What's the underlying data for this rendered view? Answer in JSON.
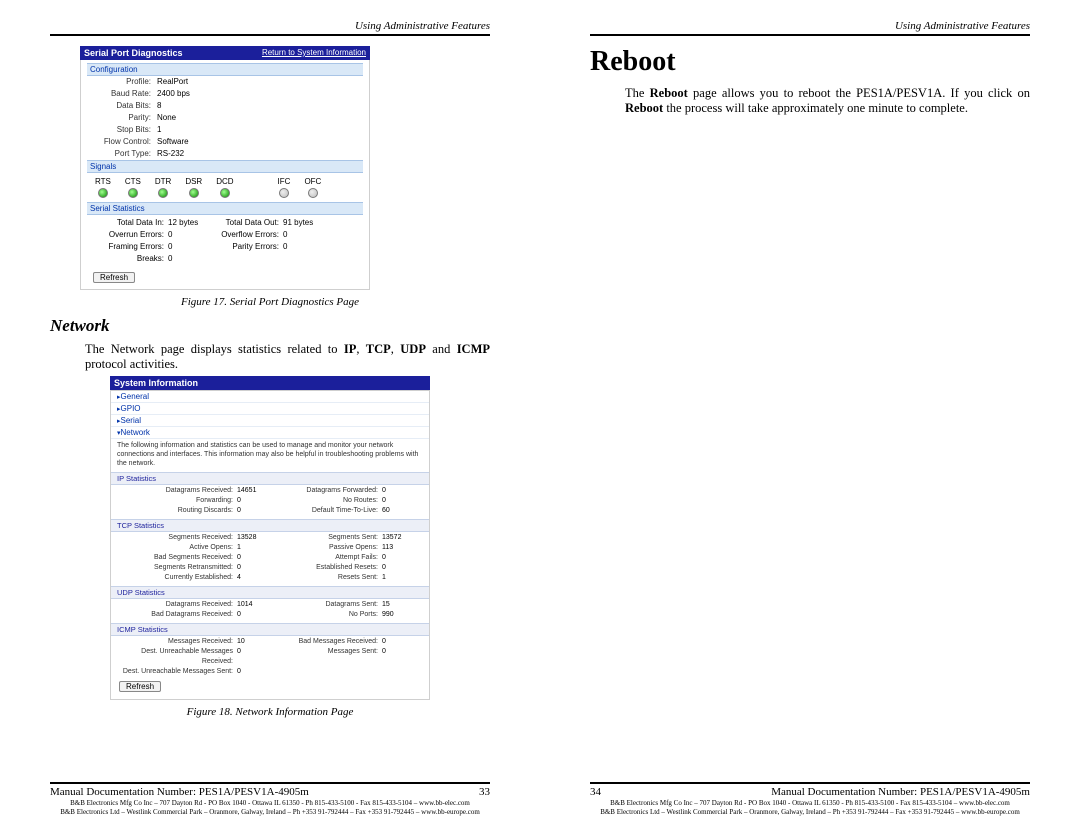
{
  "pageLeft": {
    "header": "Using Administrative Features",
    "fig17": {
      "title": "Serial Port Diagnostics",
      "returnLink": "Return to System Information",
      "sections": {
        "config": {
          "head": "Configuration",
          "rows": [
            {
              "k": "Profile:",
              "v": "RealPort"
            },
            {
              "k": "Baud Rate:",
              "v": "2400 bps"
            },
            {
              "k": "Data Bits:",
              "v": "8"
            },
            {
              "k": "Parity:",
              "v": "None"
            },
            {
              "k": "Stop Bits:",
              "v": "1"
            },
            {
              "k": "Flow Control:",
              "v": "Software"
            },
            {
              "k": "Port Type:",
              "v": "RS-232"
            }
          ]
        },
        "signals": {
          "head": "Signals",
          "items": [
            {
              "name": "RTS",
              "on": true
            },
            {
              "name": "CTS",
              "on": true
            },
            {
              "name": "DTR",
              "on": true
            },
            {
              "name": "DSR",
              "on": true
            },
            {
              "name": "DCD",
              "on": true
            },
            {
              "name": "IFC",
              "on": false
            },
            {
              "name": "OFC",
              "on": false
            }
          ]
        },
        "serialStats": {
          "head": "Serial Statistics",
          "grid": [
            [
              "Total Data In:",
              "12 bytes",
              "Total Data Out:",
              "91 bytes"
            ],
            [
              "Overrun Errors:",
              "0",
              "Overflow Errors:",
              "0"
            ],
            [
              "Framing Errors:",
              "0",
              "Parity Errors:",
              "0"
            ],
            [
              "Breaks:",
              "0",
              "",
              ""
            ]
          ],
          "button": "Refresh"
        }
      },
      "caption": "Figure 17.   Serial Port Diagnostics Page"
    },
    "networkHeading": "Network",
    "networkPara": {
      "pre": "The Network page displays statistics related to ",
      "b1": "IP",
      "c1": ", ",
      "b2": "TCP",
      "c2": ", ",
      "b3": "UDP",
      "c3": " and ",
      "b4": "ICMP",
      "post": " protocol activities."
    },
    "fig18": {
      "title": "System Information",
      "nav": [
        {
          "label": "General",
          "open": false
        },
        {
          "label": "GPIO",
          "open": false
        },
        {
          "label": "Serial",
          "open": false
        },
        {
          "label": "Network",
          "open": true
        }
      ],
      "desc": "The following information and statistics can be used to manage and monitor your network connections and interfaces. This information may also be helpful in troubleshooting problems with the network.",
      "sections": [
        {
          "head": "IP Statistics",
          "rows": [
            [
              "Datagrams Received:",
              "14651",
              "Datagrams Forwarded:",
              "0"
            ],
            [
              "Forwarding:",
              "0",
              "No Routes:",
              "0"
            ],
            [
              "Routing Discards:",
              "0",
              "Default Time-To-Live:",
              "60"
            ]
          ]
        },
        {
          "head": "TCP Statistics",
          "rows": [
            [
              "Segments Received:",
              "13528",
              "Segments Sent:",
              "13572"
            ],
            [
              "Active Opens:",
              "1",
              "Passive Opens:",
              "113"
            ],
            [
              "Bad Segments Received:",
              "0",
              "Attempt Fails:",
              "0"
            ],
            [
              "Segments Retransmitted:",
              "0",
              "Established Resets:",
              "0"
            ],
            [
              "Currently Established:",
              "4",
              "Resets Sent:",
              "1"
            ]
          ]
        },
        {
          "head": "UDP Statistics",
          "rows": [
            [
              "Datagrams Received:",
              "1014",
              "Datagrams Sent:",
              "15"
            ],
            [
              "Bad Datagrams Received:",
              "0",
              "No Ports:",
              "990"
            ]
          ]
        },
        {
          "head": "ICMP Statistics",
          "rows": [
            [
              "Messages Received:",
              "10",
              "Bad Messages Received:",
              "0"
            ],
            [
              "Dest. Unreachable Messages Received:",
              "0",
              "Messages Sent:",
              "0"
            ],
            [
              "Dest. Unreachable Messages Sent:",
              "0",
              "",
              ""
            ]
          ]
        }
      ],
      "button": "Refresh",
      "caption": "Figure 18.   Network Information Page"
    },
    "footer": {
      "doc": "Manual Documentation Number:  PES1A/PESV1A-4905m",
      "page": "33",
      "fine1": "B&B Electronics Mfg Co Inc – 707 Dayton Rd - PO Box 1040 - Ottawa IL 61350 - Ph 815-433-5100 - Fax 815-433-5104 – www.bb-elec.com",
      "fine2": "B&B Electronics Ltd – Westlink Commercial Park – Oranmore, Galway, Ireland – Ph +353 91-792444 – Fax +353 91-792445 – www.bb-europe.com"
    }
  },
  "pageRight": {
    "header": "Using Administrative Features",
    "heading": "Reboot",
    "para": {
      "p1a": "The ",
      "p1b": "Reboot",
      "p1c": " page allows you to reboot the PES1A/PESV1A. If you click on ",
      "p2a": "Reboot",
      "p2b": " the process will take approximately one minute to complete."
    },
    "footer": {
      "page": "34",
      "doc": "Manual Documentation Number: PES1A/PESV1A-4905m",
      "fine1": "B&B Electronics Mfg Co Inc – 707 Dayton Rd - PO Box 1040 - Ottawa IL 61350 - Ph 815-433-5100 - Fax 815-433-5104 – www.bb-elec.com",
      "fine2": "B&B Electronics Ltd – Westlink Commercial Park – Oranmore, Galway, Ireland – Ph +353 91-792444 – Fax +353 91-792445 – www.bb-europe.com"
    }
  }
}
